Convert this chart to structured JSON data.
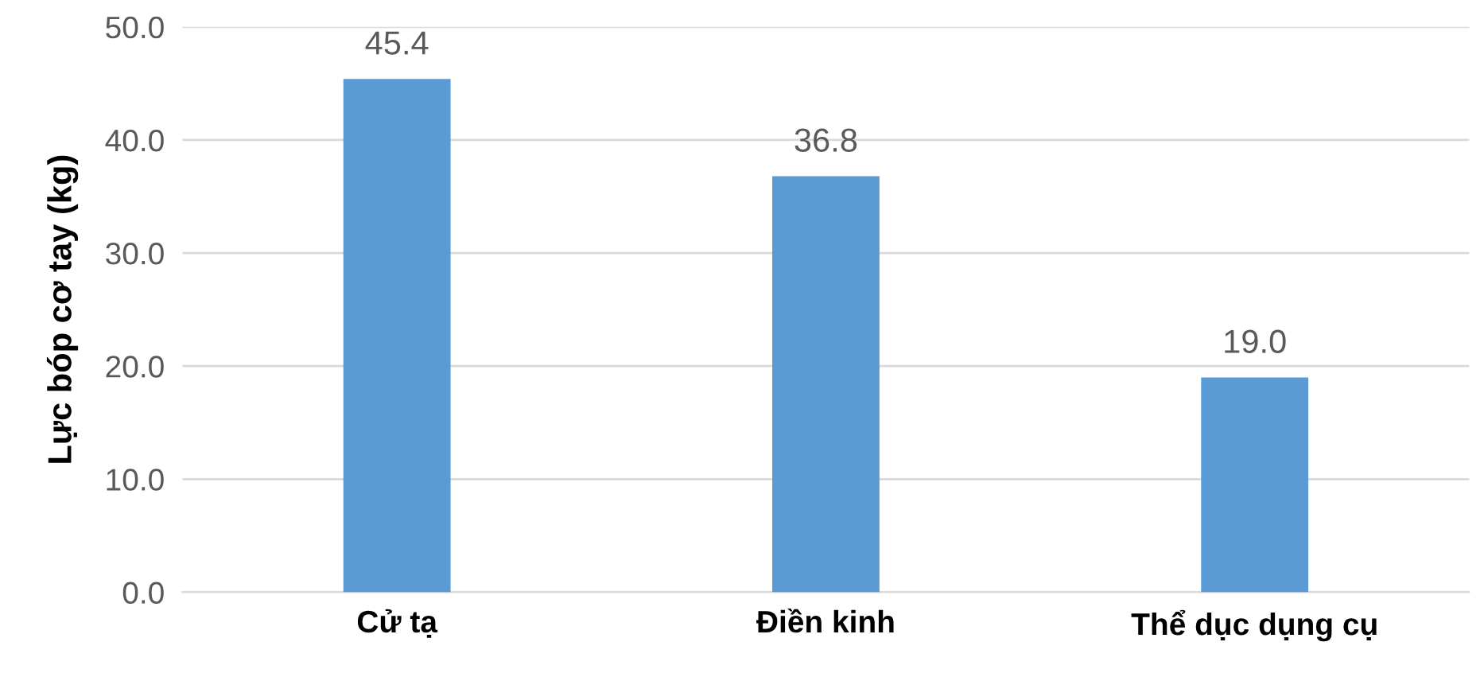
{
  "chart_data": {
    "type": "bar",
    "ylabel": "Lực bóp cơ tay (kg)",
    "categories": [
      "Cử tạ",
      "Điền kinh",
      "Thể dục dụng cụ"
    ],
    "values": [
      45.4,
      36.8,
      19.0
    ],
    "color": "#5b9bd5",
    "data_labels": true,
    "value_labels": [
      "45.4",
      "36.8",
      "19.0"
    ],
    "ylim": [
      0,
      50
    ],
    "yticks": [
      {
        "value": 0,
        "label": "0.0"
      },
      {
        "value": 10,
        "label": "10.0"
      },
      {
        "value": 20,
        "label": "20.0"
      },
      {
        "value": 30,
        "label": "30.0"
      },
      {
        "value": 40,
        "label": "40.0"
      },
      {
        "value": 50,
        "label": "50.0"
      }
    ],
    "grid": "y",
    "legend": false
  }
}
